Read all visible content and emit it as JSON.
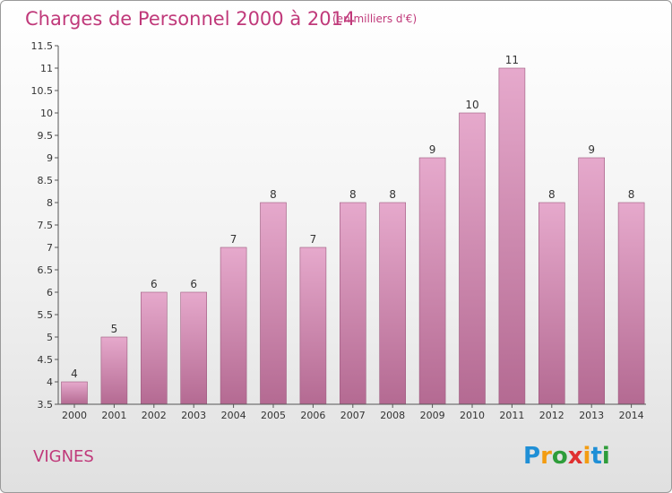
{
  "chart_data": {
    "type": "bar",
    "title": "Charges de Personnel 2000 à 2014",
    "subtitle": "(en milliers d'€)",
    "categories": [
      "2000",
      "2001",
      "2002",
      "2003",
      "2004",
      "2005",
      "2006",
      "2007",
      "2008",
      "2009",
      "2010",
      "2011",
      "2012",
      "2013",
      "2014"
    ],
    "values": [
      4,
      5,
      6,
      6,
      7,
      8,
      7,
      8,
      8,
      9,
      10,
      11,
      8,
      9,
      8
    ],
    "value_labels": [
      "4",
      "5",
      "6",
      "6",
      "7",
      "8",
      "7",
      "8",
      "8",
      "9",
      "10",
      "11",
      "8",
      "9",
      "8"
    ],
    "ylim": [
      3.5,
      11.5
    ],
    "yticks": [
      "3.5",
      "4",
      "4.5",
      "5",
      "5.5",
      "6",
      "6.5",
      "7",
      "7.5",
      "8",
      "8.5",
      "9",
      "9.5",
      "10",
      "10.5",
      "11",
      "11.5"
    ],
    "grid": false,
    "bar_color": "#d58fb5"
  },
  "commune": "VIGNES",
  "logo": {
    "letters": [
      "P",
      "r",
      "o",
      "x",
      "i",
      "t",
      "i"
    ],
    "colors": [
      "#1f8fd6",
      "#f39c12",
      "#2e9d3a",
      "#e03030",
      "#f39c12",
      "#1f8fd6",
      "#2e9d3a"
    ]
  }
}
